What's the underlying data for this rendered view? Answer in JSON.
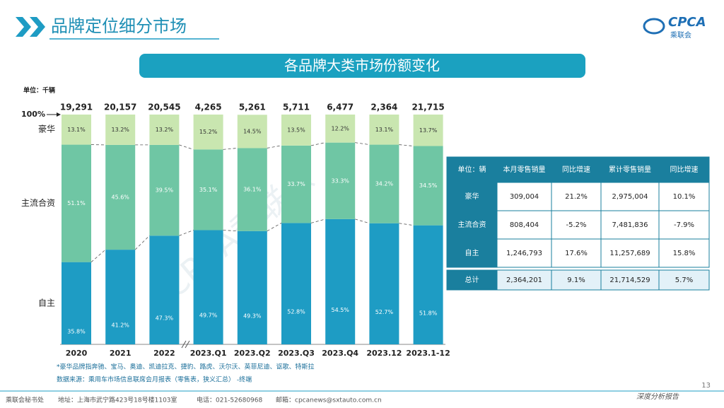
{
  "header": {
    "title": "品牌定位细分市场",
    "logo": "CPCA",
    "logo_sub": "乘联会",
    "banner": "各品牌大类市场份额变化"
  },
  "chart_data": {
    "type": "stacked_bar",
    "unit": "单位：千辆",
    "categories": [
      "2020",
      "2021",
      "2022",
      "2023.Q1",
      "2023.Q2",
      "2023.Q3",
      "2023.Q4",
      "2023.12",
      "2023.1-12"
    ],
    "totals": {
      "values": [
        19291,
        20157,
        20545,
        4265,
        5261,
        5711,
        6477,
        2364,
        21715
      ],
      "value_labels": [
        "19,291",
        "20,157",
        "20,545",
        "4,265",
        "5,261",
        "5,711",
        "6,477",
        "2,364",
        "21,715"
      ]
    },
    "series": [
      {
        "name": "自主",
        "color": "#1e9cc4",
        "values": [
          35.8,
          41.2,
          47.3,
          49.7,
          49.3,
          52.8,
          54.5,
          52.7,
          51.8
        ],
        "value_labels": [
          "35.8%",
          "41.2%",
          "47.3%",
          "49.7%",
          "49.3%",
          "52.8%",
          "54.5%",
          "52.7%",
          "51.8%"
        ]
      },
      {
        "name": "主流合资",
        "color": "#6fc6a4",
        "values": [
          51.1,
          45.6,
          39.5,
          35.1,
          36.1,
          33.7,
          33.3,
          34.2,
          34.5
        ],
        "value_labels": [
          "51.1%",
          "45.6%",
          "39.5%",
          "35.1%",
          "36.1%",
          "33.7%",
          "33.3%",
          "34.2%",
          "34.5%"
        ]
      },
      {
        "name": "豪华",
        "color": "#c9e6b0",
        "values": [
          13.1,
          13.2,
          13.2,
          15.2,
          14.5,
          13.5,
          12.2,
          13.1,
          13.7
        ],
        "value_labels": [
          "13.1%",
          "13.2%",
          "13.2%",
          "15.2%",
          "14.5%",
          "13.5%",
          "12.2%",
          "13.1%",
          "13.7%"
        ]
      }
    ],
    "ylim": [
      0,
      100
    ],
    "yticks": [
      {
        "value": 100,
        "label": "100%"
      }
    ],
    "notes": [
      "*豪华品牌指奔驰、宝马、奥迪、凯迪拉克、捷豹、路虎、沃尔沃、英菲尼迪、讴歌、特斯拉",
      "数据来源：乘用车市场信息联席会月报表（零售表，狭义汇总）  -终端"
    ]
  },
  "table": {
    "header": [
      "单位：辆",
      "本月零售销量",
      "同比增速",
      "累计零售销量",
      "同比增速"
    ],
    "rows": [
      [
        "豪华",
        "309,004",
        "21.2%",
        "2,975,004",
        "10.1%"
      ],
      [
        "主流合资",
        "808,404",
        "-5.2%",
        "7,481,836",
        "-7.9%"
      ],
      [
        "自主",
        "1,246,793",
        "17.6%",
        "11,257,689",
        "15.8%"
      ],
      [
        "总计",
        "2,364,201",
        "9.1%",
        "21,714,529",
        "5.7%"
      ]
    ]
  },
  "watermark": "CPCA乘联会",
  "footer": {
    "org": "乘联会秘书处",
    "address": "地址：上海市武宁路423号18号楼1103室",
    "phone": "电话：021-52680968",
    "email": "邮箱：cpcanews@sxtauto.com.cn",
    "page": "13",
    "tag": "深度分析报告"
  }
}
